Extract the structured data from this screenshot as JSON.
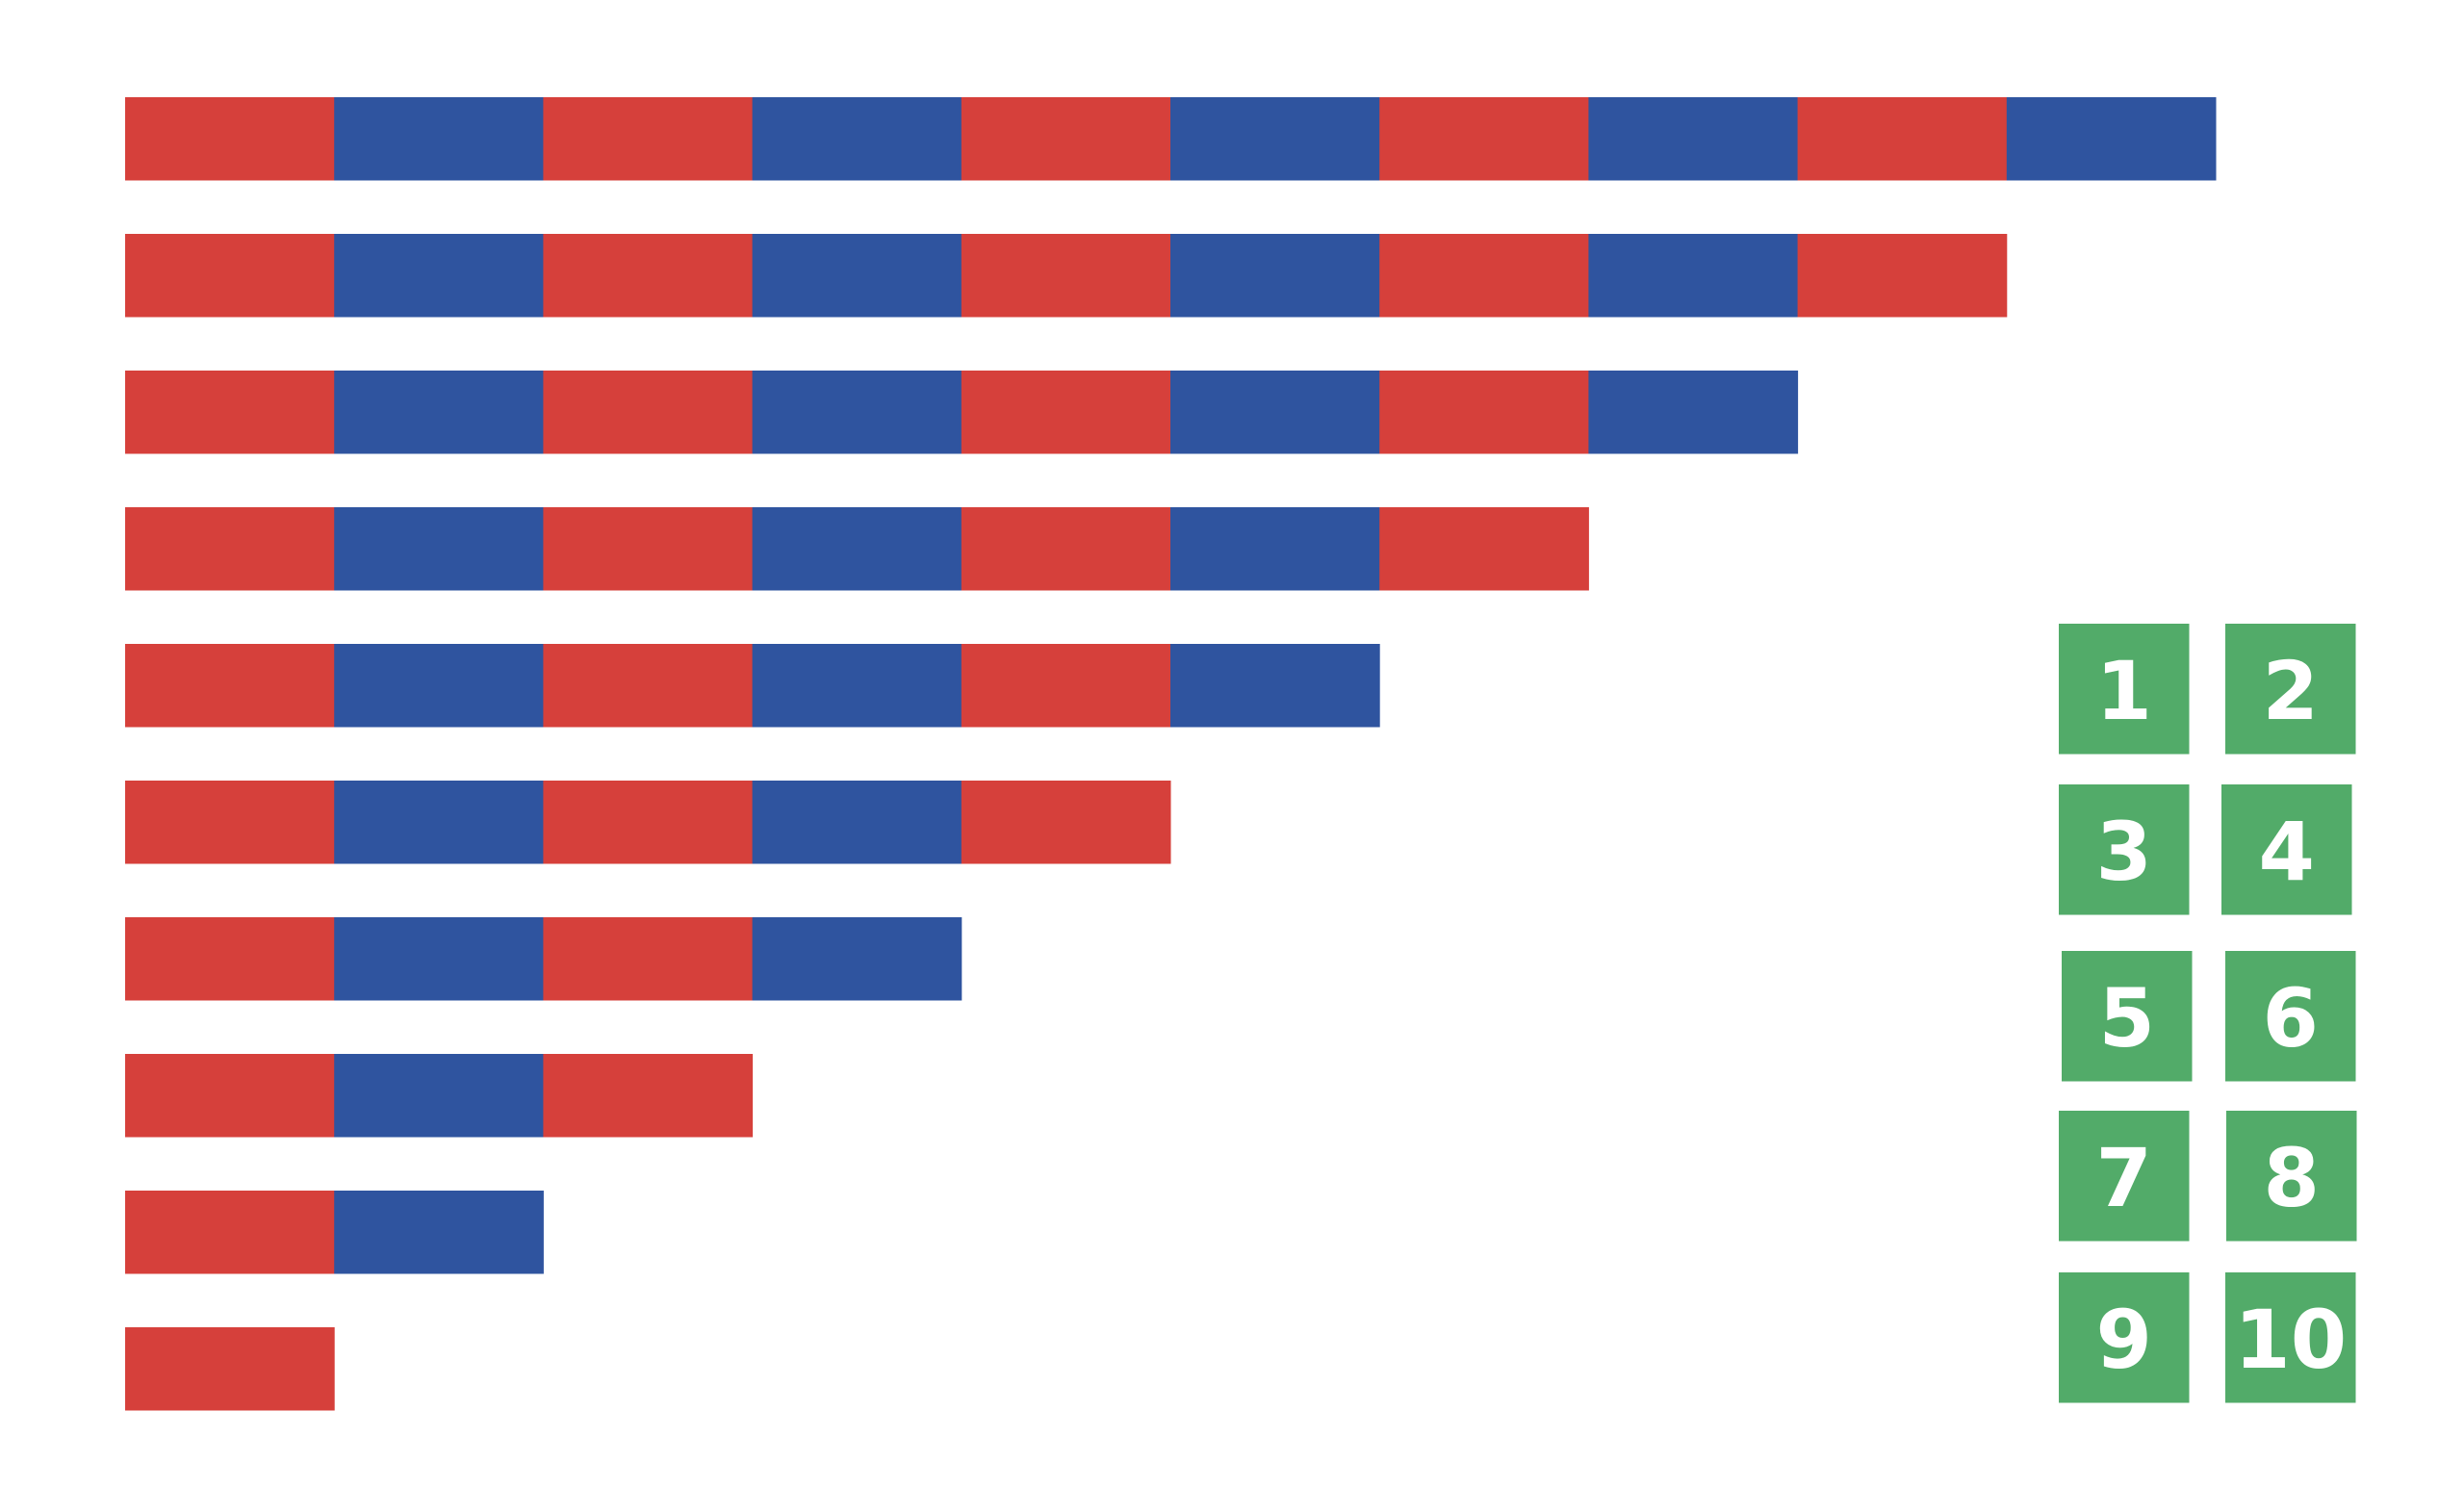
{
  "rods": [
    10,
    9,
    8,
    7,
    6,
    5,
    4,
    3,
    2,
    1
  ],
  "rod_colors": [
    "#d6403b",
    "#2f549f"
  ],
  "tiles": [
    "1",
    "2",
    "3",
    "4",
    "5",
    "6",
    "7",
    "8",
    "9",
    "10"
  ],
  "tile_color": "#52ab69"
}
